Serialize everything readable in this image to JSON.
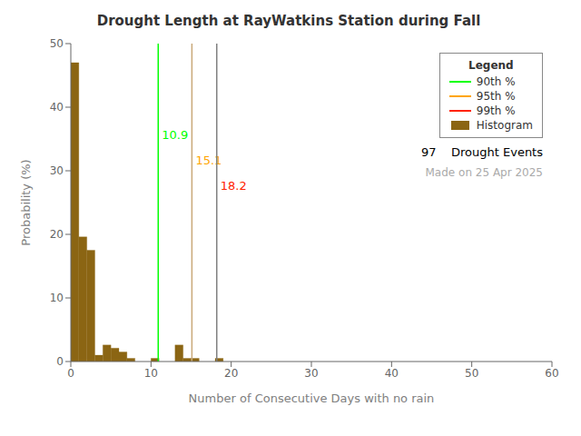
{
  "chart_data": {
    "type": "histogram",
    "title": "Drought Length at RayWatkins Station during Fall",
    "x_label": "Number of Consecutive Days with no rain",
    "y_label": "Probability (%)",
    "bins": [
      0,
      1,
      2,
      3,
      4,
      5,
      6,
      7,
      8,
      9,
      10,
      11,
      12,
      13,
      14,
      15,
      16,
      17,
      18,
      19,
      20
    ],
    "series": [
      {
        "name": "Histogram",
        "color": "#8B6513",
        "values": [
          47.0,
          19.6,
          17.5,
          1.0,
          2.6,
          2.1,
          1.5,
          0.5,
          0.0,
          0.0,
          0.5,
          0.0,
          0.0,
          2.6,
          0.5,
          0.5,
          0.0,
          0.0,
          0.5,
          0.0
        ]
      }
    ],
    "lines": [
      {
        "name": "90th %",
        "x": 10.9,
        "label": "10.9",
        "color": "#00FF00",
        "line_color": "#00FF00"
      },
      {
        "name": "95th %",
        "x": 15.1,
        "label": "15.1",
        "color": "#FFA500",
        "line_color": "#C8A878"
      },
      {
        "name": "99th %",
        "x": 18.2,
        "label": "18.2",
        "color": "#FF2200",
        "line_color": "#808080"
      }
    ],
    "xlim": [
      0,
      60
    ],
    "ylim": [
      0,
      50
    ],
    "xticks": [
      0,
      10,
      20,
      30,
      40,
      50,
      60
    ],
    "yticks": [
      0,
      10,
      20,
      30,
      40,
      50
    ],
    "grid": false,
    "legend": "upper right",
    "legend_title": "Legend",
    "annotations": [
      {
        "text": "97    Drought Events",
        "color": "#000000"
      },
      {
        "text": "Made on 25 Apr 2025",
        "color": "#AAAAAA"
      }
    ]
  }
}
